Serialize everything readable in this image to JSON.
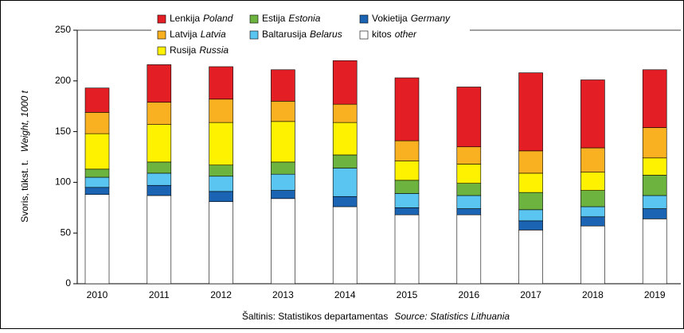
{
  "chart_data": {
    "type": "stacked_bar",
    "y_label": "Svoris, tūkst. t.",
    "y_label_en": "Weight, 1000 t",
    "source": "Šaltinis: Statistikos departamentas",
    "source_en": "Source: Statistics Lithuania",
    "categories": [
      "2010",
      "2011",
      "2012",
      "2013",
      "2014",
      "2015",
      "2016",
      "2017",
      "2018",
      "2019"
    ],
    "series": [
      {
        "name": "kitos",
        "name_en": "other",
        "color": "#ffffff",
        "values": [
          88,
          87,
          81,
          84,
          76,
          68,
          68,
          53,
          57,
          64
        ]
      },
      {
        "name": "Vokietija",
        "name_en": "Germany",
        "color": "#1b64b3",
        "values": [
          7,
          10,
          10,
          8,
          10,
          7,
          6,
          9,
          9,
          10
        ]
      },
      {
        "name": "Baltarusija",
        "name_en": "Belarus",
        "color": "#5bc5f2",
        "values": [
          10,
          12,
          15,
          16,
          28,
          14,
          13,
          11,
          10,
          13
        ]
      },
      {
        "name": "Estija",
        "name_en": "Estonia",
        "color": "#6db33f",
        "values": [
          8,
          11,
          11,
          12,
          13,
          13,
          12,
          17,
          16,
          20
        ]
      },
      {
        "name": "Rusija",
        "name_en": "Russia",
        "color": "#fff200",
        "values": [
          35,
          37,
          42,
          40,
          32,
          19,
          19,
          19,
          18,
          17
        ]
      },
      {
        "name": "Latvija",
        "name_en": "Latvia",
        "color": "#f9b121",
        "values": [
          21,
          22,
          23,
          20,
          18,
          20,
          17,
          22,
          24,
          30
        ]
      },
      {
        "name": "Lenkija",
        "name_en": "Poland",
        "color": "#e31e24",
        "values": [
          24,
          37,
          32,
          31,
          43,
          62,
          59,
          77,
          67,
          57
        ]
      }
    ],
    "ylim": [
      0,
      250
    ],
    "yticks": [
      0,
      50,
      100,
      150,
      200,
      250
    ],
    "grid": false
  }
}
